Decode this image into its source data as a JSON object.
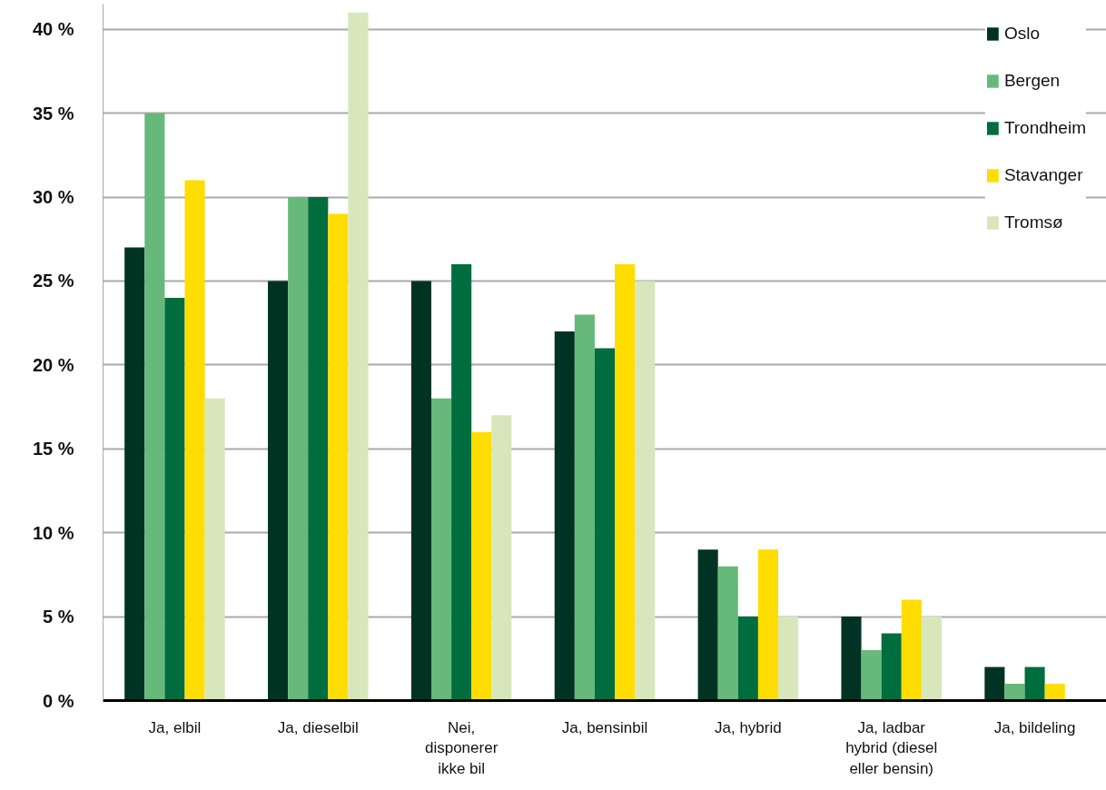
{
  "chart_data": {
    "type": "bar",
    "categories": [
      "Ja, elbil",
      "Ja, dieselbil",
      "Nei, disponerer ikke bil",
      "Ja, bensinbil",
      "Ja, hybrid",
      "Ja, ladbar hybrid (diesel eller bensin)",
      "Ja, bildeling"
    ],
    "series": [
      {
        "name": "Oslo",
        "color": "#003323",
        "values": [
          27,
          25,
          25,
          22,
          9,
          5,
          2
        ]
      },
      {
        "name": "Bergen",
        "color": "#66b97a",
        "values": [
          35,
          30,
          18,
          23,
          8,
          3,
          1
        ]
      },
      {
        "name": "Trondheim",
        "color": "#006d3f",
        "values": [
          24,
          30,
          26,
          21,
          5,
          4,
          2
        ]
      },
      {
        "name": "Stavanger",
        "color": "#ffdd00",
        "values": [
          31,
          29,
          16,
          26,
          9,
          6,
          1
        ]
      },
      {
        "name": "Tromsø",
        "color": "#d7e7bb",
        "values": [
          18,
          41,
          17,
          25,
          5,
          5,
          null
        ]
      }
    ],
    "ylim": [
      0,
      41.5
    ],
    "yticks": [
      {
        "value": 0,
        "label": "0 %"
      },
      {
        "value": 5,
        "label": "5 %"
      },
      {
        "value": 10,
        "label": "10 %"
      },
      {
        "value": 15,
        "label": "15 %"
      },
      {
        "value": 20,
        "label": "20 %"
      },
      {
        "value": 25,
        "label": "25 %"
      },
      {
        "value": 30,
        "label": "30 %"
      },
      {
        "value": 35,
        "label": "35 %"
      },
      {
        "value": 40,
        "label": "40 %"
      }
    ],
    "grid": "y",
    "legend": "top right"
  }
}
